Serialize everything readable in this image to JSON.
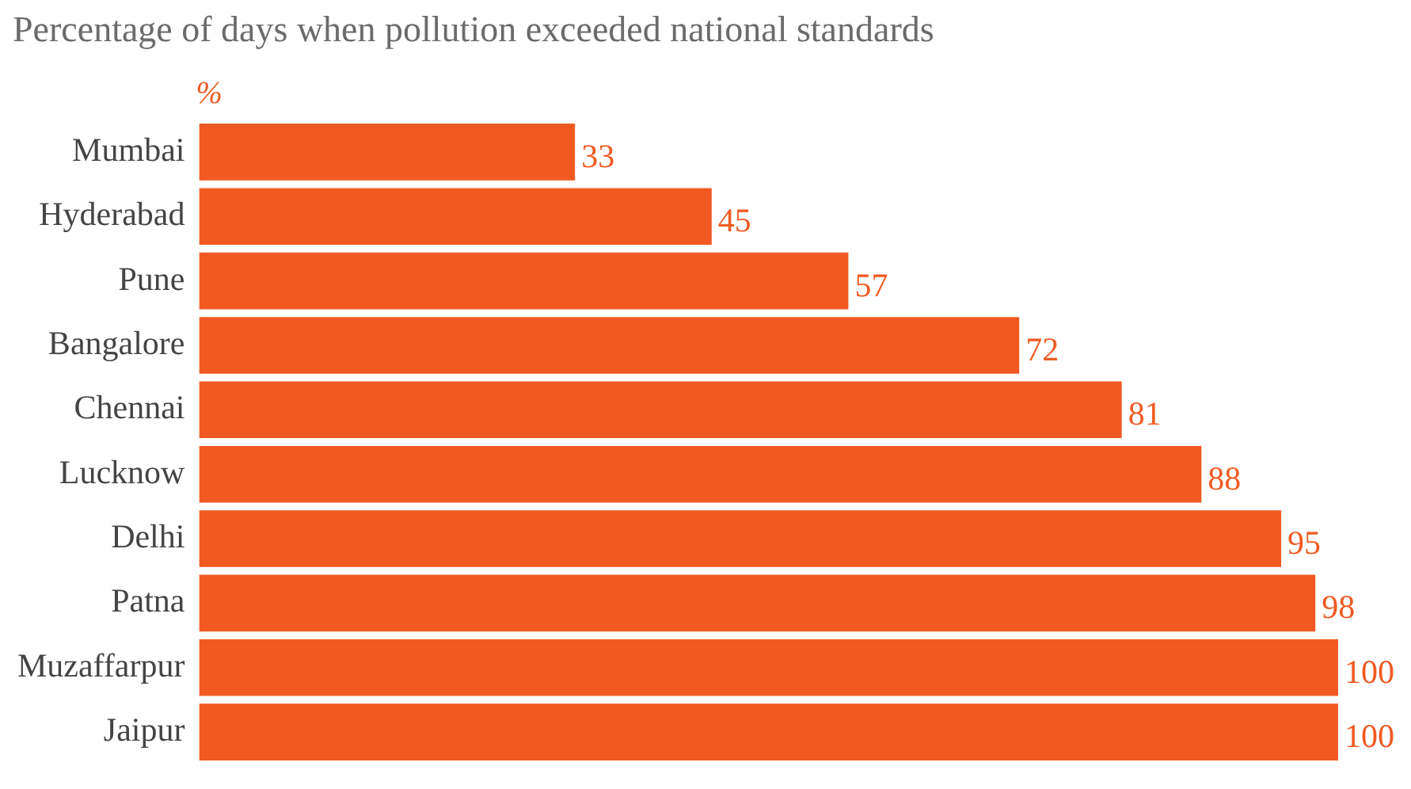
{
  "chart_data": {
    "type": "bar",
    "orientation": "horizontal",
    "title": "Percentage of days when pollution exceeded national standards",
    "annotations": [
      "%"
    ],
    "categories": [
      "Mumbai",
      "Hyderabad",
      "Pune",
      "Bangalore",
      "Chennai",
      "Lucknow",
      "Delhi",
      "Patna",
      "Muzaffarpur",
      "Jaipur"
    ],
    "values": [
      33,
      45,
      57,
      72,
      81,
      88,
      95,
      98,
      100,
      100
    ],
    "color": "#f05a22",
    "xlim": [
      0,
      100
    ],
    "tick_labels": "y",
    "data_labels": true,
    "grid": false,
    "legend": false
  }
}
